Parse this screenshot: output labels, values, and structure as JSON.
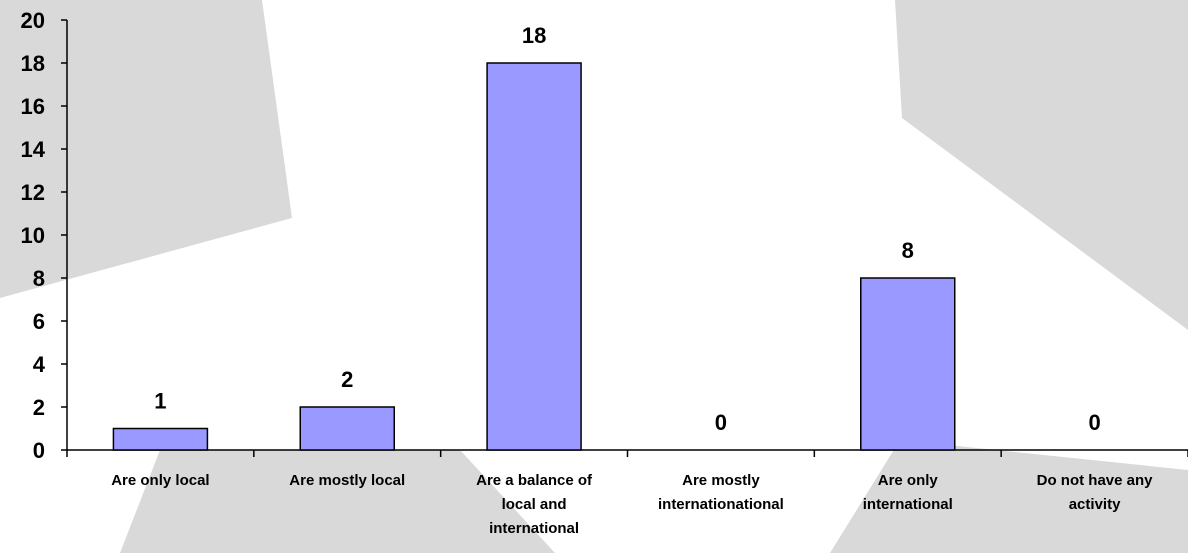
{
  "colors": {
    "bar_fill": "#9999ff",
    "bar_stroke": "#000000",
    "background_shape": "#d9d9d9",
    "background": "#ffffff"
  },
  "chart_data": {
    "type": "bar",
    "title": "",
    "xlabel": "",
    "ylabel": "",
    "ylim": [
      0,
      20
    ],
    "yticks": [
      "0",
      "2",
      "4",
      "6",
      "8",
      "10",
      "12",
      "14",
      "16",
      "18",
      "20"
    ],
    "grid": false,
    "legend": "none",
    "categories": [
      [
        "Are only local"
      ],
      [
        "Are mostly local"
      ],
      [
        "Are a balance of",
        "local and",
        "international"
      ],
      [
        "Are mostly",
        "internationational"
      ],
      [
        "Are only",
        "international"
      ],
      [
        "Do not have any",
        "activity"
      ]
    ],
    "values": [
      1,
      2,
      18,
      0,
      8,
      0
    ],
    "data_labels": [
      "1",
      "2",
      "18",
      "0",
      "8",
      "0"
    ]
  }
}
